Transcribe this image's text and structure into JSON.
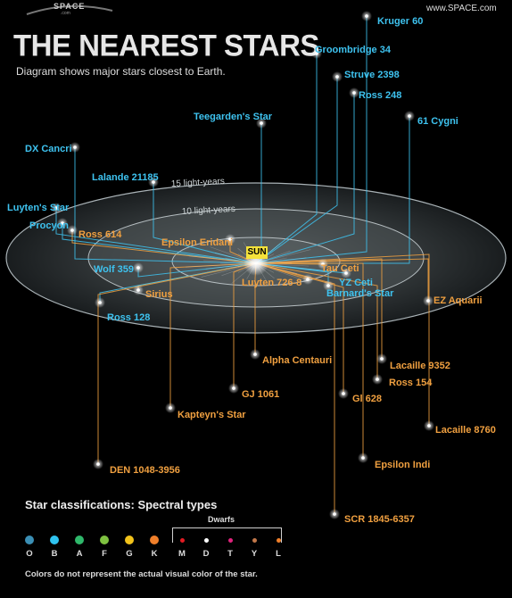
{
  "header": {
    "logo_text": "SPACE",
    "logo_sub": ".com",
    "site_url": "www.SPACE.com",
    "title": "THE NEAREST STARS",
    "subtitle": "Diagram shows major stars closest to Earth."
  },
  "rings": {
    "label_15": "15 light-years",
    "label_10": "10 light-years"
  },
  "sun": {
    "label": "SUN"
  },
  "stars": [
    {
      "id": "kruger-60",
      "name": "Kruger 60",
      "color": "#3ec3f0"
    },
    {
      "id": "groombridge-34",
      "name": "Groombridge 34",
      "color": "#3ec3f0"
    },
    {
      "id": "struve-2398",
      "name": "Struve 2398",
      "color": "#3ec3f0"
    },
    {
      "id": "ross-248",
      "name": "Ross 248",
      "color": "#3ec3f0"
    },
    {
      "id": "61-cygni",
      "name": "61 Cygni",
      "color": "#3ec3f0"
    },
    {
      "id": "teegardens-star",
      "name": "Teegarden's Star",
      "color": "#3ec3f0"
    },
    {
      "id": "dx-cancri",
      "name": "DX Cancri",
      "color": "#3ec3f0"
    },
    {
      "id": "lalande-21185",
      "name": "Lalande 21185",
      "color": "#3ec3f0"
    },
    {
      "id": "luytens-star",
      "name": "Luyten's Star",
      "color": "#3ec3f0"
    },
    {
      "id": "procyon",
      "name": "Procyon",
      "color": "#3ec3f0"
    },
    {
      "id": "ross-614",
      "name": "Ross 614",
      "color": "#f0a040"
    },
    {
      "id": "epsilon-eridani",
      "name": "Epsilon Eridani",
      "color": "#f0a040"
    },
    {
      "id": "wolf-359",
      "name": "Wolf 359",
      "color": "#3ec3f0"
    },
    {
      "id": "sirius",
      "name": "Sirius",
      "color": "#f0a040"
    },
    {
      "id": "ross-128",
      "name": "Ross 128",
      "color": "#3ec3f0"
    },
    {
      "id": "tau-ceti",
      "name": "Tau Ceti",
      "color": "#f0a040"
    },
    {
      "id": "yz-ceti",
      "name": "YZ Ceti",
      "color": "#3ec3f0"
    },
    {
      "id": "luyten-726-8",
      "name": "Luyten 726-8",
      "color": "#f0a040"
    },
    {
      "id": "barnards-star",
      "name": "Barnard's Star",
      "color": "#3ec3f0"
    },
    {
      "id": "ez-aquarii",
      "name": "EZ Aquarii",
      "color": "#f0a040"
    },
    {
      "id": "alpha-centauri",
      "name": "Alpha Centauri",
      "color": "#f0a040"
    },
    {
      "id": "lacaille-9352",
      "name": "Lacaille 9352",
      "color": "#f0a040"
    },
    {
      "id": "ross-154",
      "name": "Ross 154",
      "color": "#f0a040"
    },
    {
      "id": "gj-1061",
      "name": "GJ 1061",
      "color": "#f0a040"
    },
    {
      "id": "gl-628",
      "name": "Gl 628",
      "color": "#f0a040"
    },
    {
      "id": "kapteyns-star",
      "name": "Kapteyn's Star",
      "color": "#f0a040"
    },
    {
      "id": "lacaille-8760",
      "name": "Lacaille 8760",
      "color": "#f0a040"
    },
    {
      "id": "den-1048-3956",
      "name": "DEN 1048-3956",
      "color": "#f0a040"
    },
    {
      "id": "epsilon-indi",
      "name": "Epsilon Indi",
      "color": "#f0a040"
    },
    {
      "id": "scr-1845-6357",
      "name": "SCR 1845-6357",
      "color": "#f0a040"
    }
  ],
  "legend": {
    "title": "Star classifications: Spectral types",
    "dwarfs_label": "Dwarfs",
    "footnote": "Colors do not represent the actual visual color of the star.",
    "types": [
      {
        "letter": "O",
        "color": "#3b8fb5"
      },
      {
        "letter": "B",
        "color": "#2fc3f0"
      },
      {
        "letter": "A",
        "color": "#2fb86b"
      },
      {
        "letter": "F",
        "color": "#7fc241"
      },
      {
        "letter": "G",
        "color": "#f2c31b"
      },
      {
        "letter": "K",
        "color": "#f07f2a"
      },
      {
        "letter": "M",
        "color": "#e31b23"
      },
      {
        "letter": "D",
        "color": "#ffffff"
      },
      {
        "letter": "T",
        "color": "#e0237d"
      },
      {
        "letter": "Y",
        "color": "#c3784a"
      },
      {
        "letter": "L",
        "color": "#f07f2a"
      }
    ]
  }
}
